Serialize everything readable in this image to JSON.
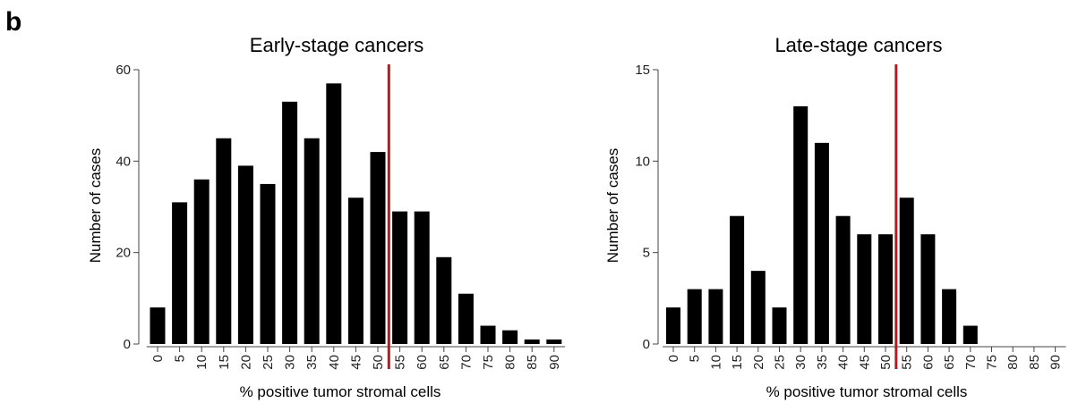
{
  "panel_label": "b",
  "chart_data": [
    {
      "type": "bar",
      "title": "Early-stage cancers",
      "xlabel": "% positive tumor stromal cells",
      "ylabel": "Number of cases",
      "categories": [
        "0",
        "5",
        "10",
        "15",
        "20",
        "25",
        "30",
        "35",
        "40",
        "45",
        "50",
        "55",
        "60",
        "65",
        "70",
        "75",
        "80",
        "85",
        "90"
      ],
      "values": [
        8,
        31,
        36,
        45,
        39,
        35,
        53,
        45,
        57,
        32,
        42,
        29,
        29,
        19,
        11,
        4,
        3,
        1,
        1
      ],
      "ylim": [
        0,
        60
      ],
      "yticks": [
        0,
        20,
        40,
        60
      ],
      "cutoff_line": {
        "x": 52.5,
        "color": "#c0151b"
      },
      "bar_color": "#000000",
      "grid": false
    },
    {
      "type": "bar",
      "title": "Late-stage cancers",
      "xlabel": "% positive tumor stromal cells",
      "ylabel": "Number of cases",
      "categories": [
        "0",
        "5",
        "10",
        "15",
        "20",
        "25",
        "30",
        "35",
        "40",
        "45",
        "50",
        "55",
        "60",
        "65",
        "70",
        "75",
        "80",
        "85",
        "90"
      ],
      "values": [
        2,
        3,
        3,
        7,
        4,
        2,
        13,
        11,
        7,
        6,
        6,
        8,
        6,
        3,
        1,
        0,
        0,
        0,
        0
      ],
      "ylim": [
        0,
        15
      ],
      "yticks": [
        0,
        5,
        10,
        15
      ],
      "cutoff_line": {
        "x": 52.5,
        "color": "#c0151b"
      },
      "bar_color": "#000000",
      "grid": false
    }
  ]
}
